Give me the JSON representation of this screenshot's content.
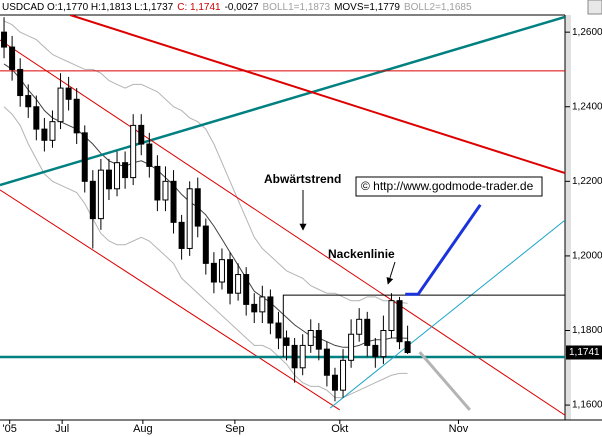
{
  "chart_data": {
    "type": "candlestick",
    "header": [
      {
        "text": "USDCAD O:1,1770 H:1,1813 L:1,1737",
        "color": "#000000"
      },
      {
        "text": "C: 1,1741",
        "color": "#cc0000"
      },
      {
        "text": "-0,0027",
        "color": "#000000"
      },
      {
        "text": "BOLL1=1,1873",
        "color": "#a0a0a0"
      },
      {
        "text": "MOVS=1,1779",
        "color": "#000000"
      },
      {
        "text": "BOLL2=1,1685",
        "color": "#a0a0a0"
      }
    ],
    "x": [
      0,
      1,
      2,
      3,
      4,
      5,
      6,
      7,
      8,
      9,
      10,
      11,
      12,
      13,
      14,
      15,
      16,
      17,
      18,
      19,
      20,
      21,
      22,
      23,
      24,
      25,
      26,
      27,
      28,
      29,
      30,
      31,
      32,
      33,
      34,
      35,
      36,
      37,
      38,
      39,
      40,
      41,
      42,
      43,
      44,
      45,
      46,
      47,
      48,
      49,
      50
    ],
    "open": [
      1.26,
      1.256,
      1.25,
      1.243,
      1.24,
      1.234,
      1.231,
      1.236,
      1.245,
      1.242,
      1.233,
      1.22,
      1.21,
      1.223,
      1.218,
      1.225,
      1.221,
      1.235,
      1.23,
      1.224,
      1.215,
      1.22,
      1.209,
      1.202,
      1.218,
      1.208,
      1.198,
      1.193,
      1.199,
      1.19,
      1.195,
      1.187,
      1.185,
      1.189,
      1.182,
      1.178,
      1.176,
      1.17,
      1.176,
      1.18,
      1.175,
      1.168,
      1.164,
      1.172,
      1.179,
      1.183,
      1.176,
      1.173,
      1.18,
      1.188,
      1.177
    ],
    "high": [
      1.264,
      1.259,
      1.253,
      1.246,
      1.243,
      1.237,
      1.239,
      1.249,
      1.248,
      1.245,
      1.235,
      1.223,
      1.226,
      1.226,
      1.228,
      1.228,
      1.238,
      1.238,
      1.233,
      1.227,
      1.224,
      1.223,
      1.211,
      1.22,
      1.221,
      1.21,
      1.201,
      1.202,
      1.201,
      1.198,
      1.197,
      1.19,
      1.192,
      1.191,
      1.185,
      1.18,
      1.178,
      1.179,
      1.183,
      1.182,
      1.177,
      1.17,
      1.175,
      1.183,
      1.186,
      1.185,
      1.178,
      1.184,
      1.19,
      1.189,
      1.1813
    ],
    "low": [
      1.253,
      1.247,
      1.24,
      1.237,
      1.231,
      1.228,
      1.229,
      1.234,
      1.239,
      1.23,
      1.217,
      1.202,
      1.207,
      1.215,
      1.216,
      1.218,
      1.219,
      1.227,
      1.221,
      1.212,
      1.212,
      1.206,
      1.199,
      1.2,
      1.205,
      1.195,
      1.19,
      1.191,
      1.187,
      1.188,
      1.184,
      1.182,
      1.182,
      1.179,
      1.175,
      1.172,
      1.166,
      1.168,
      1.174,
      1.172,
      1.165,
      1.161,
      1.162,
      1.17,
      1.177,
      1.173,
      1.17,
      1.171,
      1.178,
      1.175,
      1.1737
    ],
    "close": [
      1.256,
      1.25,
      1.243,
      1.24,
      1.234,
      1.231,
      1.236,
      1.245,
      1.242,
      1.233,
      1.22,
      1.21,
      1.223,
      1.218,
      1.225,
      1.221,
      1.235,
      1.23,
      1.224,
      1.215,
      1.22,
      1.209,
      1.202,
      1.218,
      1.208,
      1.198,
      1.193,
      1.199,
      1.19,
      1.195,
      1.187,
      1.185,
      1.189,
      1.182,
      1.178,
      1.176,
      1.17,
      1.176,
      1.18,
      1.175,
      1.168,
      1.164,
      1.172,
      1.179,
      1.183,
      1.176,
      1.173,
      1.18,
      1.188,
      1.177,
      1.1741
    ],
    "up_color": "#ffffff",
    "down_color": "#000000",
    "wick_color": "#000000",
    "bands": [
      {
        "color": "#b4b4b4",
        "values": [
          1.263,
          1.262,
          1.26,
          1.259,
          1.258,
          1.256,
          1.254,
          1.253,
          1.252,
          1.251,
          1.25,
          1.25,
          1.249,
          1.247,
          1.246,
          1.245,
          1.246,
          1.246,
          1.245,
          1.244,
          1.242,
          1.24,
          1.239,
          1.237,
          1.236,
          1.234,
          1.23,
          1.225,
          1.22,
          1.215,
          1.21,
          1.205,
          1.202,
          1.2,
          1.198,
          1.196,
          1.195,
          1.194,
          1.192,
          1.191,
          1.19,
          1.19,
          1.189,
          1.188,
          1.188,
          1.189,
          1.189,
          1.188,
          1.188,
          1.1875,
          1.1873
        ]
      },
      {
        "color": "#404040",
        "values": [
          1.2515,
          1.25,
          1.2475,
          1.2445,
          1.242,
          1.239,
          1.237,
          1.236,
          1.235,
          1.234,
          1.232,
          1.23,
          1.2275,
          1.2255,
          1.2245,
          1.224,
          1.225,
          1.2255,
          1.2245,
          1.223,
          1.221,
          1.219,
          1.2165,
          1.2145,
          1.213,
          1.211,
          1.208,
          1.2045,
          1.201,
          1.1975,
          1.194,
          1.1905,
          1.189,
          1.1875,
          1.1855,
          1.1835,
          1.1815,
          1.18,
          1.1785,
          1.178,
          1.177,
          1.176,
          1.1755,
          1.1755,
          1.176,
          1.177,
          1.1775,
          1.1775,
          1.178,
          1.178,
          1.1779
        ]
      },
      {
        "color": "#b4b4b4",
        "values": [
          1.24,
          1.238,
          1.235,
          1.23,
          1.226,
          1.222,
          1.22,
          1.219,
          1.218,
          1.217,
          1.214,
          1.21,
          1.206,
          1.204,
          1.203,
          1.203,
          1.204,
          1.205,
          1.204,
          1.202,
          1.2,
          1.198,
          1.194,
          1.192,
          1.19,
          1.188,
          1.186,
          1.184,
          1.182,
          1.18,
          1.178,
          1.176,
          1.176,
          1.175,
          1.173,
          1.171,
          1.168,
          1.166,
          1.165,
          1.165,
          1.164,
          1.162,
          1.162,
          1.163,
          1.164,
          1.165,
          1.166,
          1.167,
          1.168,
          1.1685,
          1.1685
        ]
      }
    ],
    "lines": [
      {
        "color": "#008080",
        "width": 2.5,
        "x": [
          -0.5,
          69.5
        ],
        "y": [
          1.219,
          1.2641
        ]
      },
      {
        "color": "#dd0000",
        "width": 2,
        "x": [
          8.2,
          69.5
        ],
        "y": [
          1.2646,
          1.2222
        ]
      },
      {
        "color": "#dd0000",
        "width": 1,
        "x": [
          -0.5,
          69.5
        ],
        "y": [
          1.2496,
          1.2496
        ]
      },
      {
        "color": "#dd0000",
        "width": 1,
        "x": [
          -0.5,
          69.5
        ],
        "y": [
          1.2579,
          1.1573
        ]
      },
      {
        "color": "#dd0000",
        "width": 1,
        "x": [
          -0.5,
          41.6
        ],
        "y": [
          1.2177,
          1.1587
        ]
      },
      {
        "color": "#008080",
        "width": 2.5,
        "x": [
          -0.5,
          69.5
        ],
        "y": [
          1.1729,
          1.1729
        ]
      },
      {
        "color": "#1aa3c8",
        "width": 1,
        "x": [
          40.4,
          69.5
        ],
        "y": [
          1.1592,
          1.2096
        ]
      },
      {
        "color": "#000000",
        "width": 1,
        "x": [
          34.6,
          34.6,
          69.5
        ],
        "y": [
          1.1729,
          1.1895,
          1.1895
        ]
      },
      {
        "color": "#1a33dd",
        "width": 3,
        "x": [
          49.7,
          51.3,
          59.0
        ],
        "y": [
          1.1897,
          1.1897,
          1.2137
        ]
      },
      {
        "color": "#b4b4b4",
        "width": 3,
        "x": [
          51.5,
          57.7
        ],
        "y": [
          1.1742,
          1.1587
        ]
      }
    ],
    "last_price": {
      "value": 1.1741,
      "label": "1,1741"
    },
    "annotations": [
      "Abwärtstrend",
      "Nackenlinie"
    ],
    "copyright": "© http://www.godmode-trader.de",
    "xlim": [
      -0.5,
      69.5
    ],
    "xticks": [
      {
        "value": 0.7,
        "label": "'05"
      },
      {
        "value": 7.2,
        "label": "Jul"
      },
      {
        "value": 17.2,
        "label": "Aug"
      },
      {
        "value": 28.6,
        "label": "Sep"
      },
      {
        "value": 41.6,
        "label": "Okt"
      },
      {
        "value": 56.3,
        "label": "Nov"
      }
    ],
    "ylim": [
      1.156,
      1.2646
    ],
    "yticks": [
      {
        "value": 1.16,
        "label": "1,1600"
      },
      {
        "value": 1.18,
        "label": "1,1800"
      },
      {
        "value": 1.2,
        "label": "1,2000"
      },
      {
        "value": 1.22,
        "label": "1,2200"
      },
      {
        "value": 1.24,
        "label": "1,2400"
      },
      {
        "value": 1.26,
        "label": "1,2600"
      }
    ]
  }
}
